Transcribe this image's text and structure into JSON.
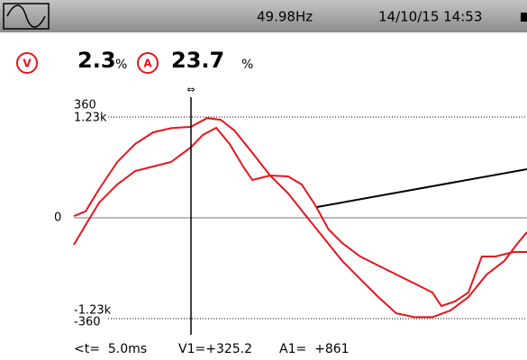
{
  "header": {
    "frequency": "49.98Hz",
    "datetime": "14/10/15 14:53"
  },
  "measures": {
    "v_icon": "V",
    "v_value": "2.3",
    "v_unit": "%",
    "a_icon": "A",
    "a_value": "23.7",
    "a_unit": "%"
  },
  "cursor": {
    "marker": "⇔",
    "t": "<t=  5.0ms",
    "v1": "V1=+325.2",
    "a1": "A1=  +861"
  },
  "chart_data": {
    "type": "line",
    "xlim": [
      0,
      19.35
    ],
    "ylim": [
      -360,
      360
    ],
    "yticks": [
      360,
      0,
      -360
    ],
    "y2lim": [
      -1230,
      1230
    ],
    "y2ticks": [
      {
        "value": 1230,
        "label": "1.23k"
      },
      {
        "value": -1230,
        "label": "-1.23k"
      }
    ],
    "series": [
      {
        "color": "#e8141c",
        "x": [
          0,
          0.5,
          1.08,
          1.85,
          2.62,
          3.38,
          4.15,
          5.0,
          5.69,
          6.27,
          6.85,
          7.62,
          8.38,
          9.15,
          9.92,
          10.69,
          11.46,
          12.23,
          13.0,
          13.77,
          14.54,
          15.31,
          16.08,
          16.85,
          17.62,
          18.38,
          18.96,
          19.35
        ],
        "values": [
          6,
          23,
          103,
          199,
          264,
          305,
          320,
          325,
          356,
          350,
          312,
          232,
          151,
          87,
          6,
          -74,
          -154,
          -219,
          -283,
          -341,
          -355,
          -355,
          -331,
          -283,
          -203,
          -154,
          -90,
          -51
        ]
      },
      {
        "color": "#e8141c",
        "axis": "y2",
        "x": [
          0,
          0.5,
          1.08,
          1.85,
          2.62,
          3.38,
          4.15,
          5.0,
          5.5,
          6.08,
          6.65,
          7.23,
          7.62,
          8.38,
          9.15,
          9.73,
          10.31,
          10.88,
          11.46,
          12.23,
          13.0,
          13.77,
          14.54,
          15.31,
          15.69,
          16.27,
          16.85,
          17.42,
          18.0,
          18.77,
          19.35
        ],
        "values": [
          -329,
          -88,
          186,
          406,
          571,
          626,
          681,
          861,
          1010,
          1098,
          900,
          626,
          461,
          516,
          505,
          406,
          154,
          -143,
          -307,
          -472,
          -582,
          -692,
          -801,
          -911,
          -1076,
          -1021,
          -911,
          -472,
          -472,
          -417,
          -417
        ]
      }
    ]
  }
}
